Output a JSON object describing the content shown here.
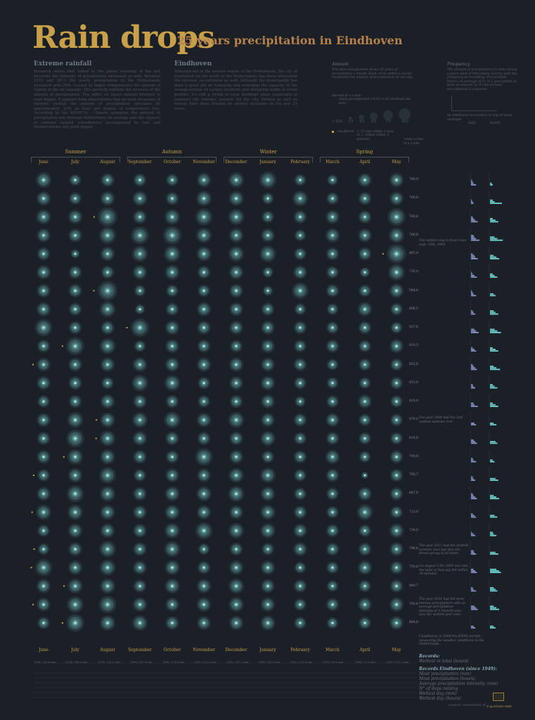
{
  "title": "Rain drops",
  "subtitle": "25 years precipitation in Eindhoven",
  "intro": {
    "heading": "Extreme rainfall",
    "text": "Research shows that linked to the global warming of the last decennia the intensity of precipitation increased as well. Between 1910 and 2013 the yearly precipitation in the Netherlands increased with 26%. Caused by higher temperatures the amount of vapour in the air expands. This partially explains the increase of the amount of precipitation. The effect on heavy rainfall however is even bigger. It appears from observations that on most occasions of extreme rainfall the amount of precipitation increases by approximately 12% an hour per degree of temperature rise. According to the KNMI'14 - climate scenarios the amount of precipitation will increase furthermore on average and the chances of extreme rainfall (cloudbursts) accompanied by hail and thunderstorms will grow bigger."
  },
  "eindhoven": {
    "heading": "Eindhoven",
    "text": "Although not in the wettest region of the Netherlands, the city of Eindhoven (in the south of the Netherlands) has been witnessing the increase on extremes as well. Although the municipality has done a great job on renewing and enlarging the capacity of the sewage-system on various locations and designing wadis in street profiles, it's still a victim of local floodings when (especially in summer) the extreme showers hit the city. Streets as well as houses have been flooded on several occasions in the last 25 years."
  },
  "legend_amount": {
    "heading": "Amount",
    "text": "This data-visualisation shows 25 years of precipitation a month. Each circle within a month represents the amount of precipitation on one day.",
    "scale_label": "amount in a z-axis",
    "daily_label": "(daily precipitation <0.05 is all rendered the size)",
    "steps": [
      "< 0.05",
      "1,0",
      "4,0",
      "9,0",
      "7,0",
      "16,0"
    ],
    "cloudburst_label": "cloudburst",
    "cloudburst_text": "> 25 mm within 1 hour or > 10mm within 5 minutes"
  },
  "legend_frequency": {
    "heading": "Frequency",
    "text": "The amount of precipitation (in mm) during a given spell of time (daily, hourly) with the frequency of exceeding. For example there's an average of 1x in 5 year within at least an amount of 30 mm an hour precipitation is expected.",
    "additional": "an additional occurrence on top of these averages",
    "left_label": "daily",
    "right_label": "hourly"
  },
  "totals_header": "totals a year in a z-axis",
  "seasons": [
    "Summer",
    "Autumn",
    "Winter",
    "Spring"
  ],
  "months": [
    "June",
    "July",
    "August",
    "September",
    "October",
    "November",
    "December",
    "January",
    "February",
    "March",
    "April",
    "May"
  ],
  "colors": {
    "background": "#1b1f26",
    "accent": "#c9a04a",
    "drop": "#7fc8c4",
    "daily_bar": "#8c93c8",
    "hourly_bar": "#6ed6d2"
  },
  "chart_data": {
    "type": "bubble-matrix",
    "rows": 25,
    "columns": [
      "June",
      "July",
      "August",
      "September",
      "October",
      "November",
      "December",
      "January",
      "February",
      "March",
      "April",
      "May"
    ],
    "monthly_mm": [
      [
        72,
        40,
        55,
        50,
        45,
        60,
        70,
        85,
        40,
        35,
        55,
        60
      ],
      [
        60,
        45,
        60,
        65,
        50,
        70,
        65,
        40,
        70,
        45,
        50,
        55
      ],
      [
        65,
        60,
        110,
        55,
        70,
        85,
        75,
        45,
        50,
        55,
        50,
        95
      ],
      [
        55,
        55,
        85,
        95,
        100,
        70,
        60,
        55,
        40,
        60,
        55,
        70
      ],
      [
        50,
        25,
        60,
        75,
        80,
        65,
        70,
        80,
        45,
        50,
        50,
        110
      ],
      [
        60,
        50,
        50,
        60,
        65,
        50,
        60,
        35,
        55,
        45,
        30,
        80
      ],
      [
        55,
        55,
        115,
        40,
        45,
        45,
        55,
        30,
        80,
        50,
        45,
        60
      ],
      [
        60,
        50,
        75,
        30,
        50,
        60,
        55,
        50,
        40,
        40,
        60,
        45
      ],
      [
        90,
        50,
        55,
        100,
        60,
        55,
        55,
        55,
        50,
        45,
        50,
        40
      ],
      [
        50,
        95,
        75,
        40,
        55,
        50,
        45,
        55,
        45,
        50,
        45,
        55
      ],
      [
        55,
        55,
        60,
        60,
        60,
        60,
        60,
        55,
        50,
        40,
        45,
        45
      ],
      [
        55,
        55,
        45,
        80,
        75,
        45,
        55,
        60,
        45,
        40,
        40,
        45
      ],
      [
        45,
        50,
        60,
        55,
        50,
        45,
        50,
        55,
        35,
        45,
        55,
        45
      ],
      [
        55,
        75,
        65,
        70,
        80,
        60,
        75,
        55,
        50,
        55,
        45,
        45
      ],
      [
        50,
        95,
        70,
        60,
        55,
        50,
        55,
        65,
        45,
        50,
        45,
        45
      ],
      [
        55,
        70,
        65,
        55,
        50,
        90,
        55,
        45,
        50,
        60,
        40,
        50
      ],
      [
        45,
        60,
        80,
        45,
        55,
        55,
        65,
        70,
        45,
        50,
        15,
        50
      ],
      [
        55,
        85,
        70,
        55,
        65,
        65,
        75,
        60,
        45,
        45,
        55,
        50
      ],
      [
        70,
        70,
        65,
        55,
        65,
        60,
        55,
        65,
        50,
        45,
        75,
        45
      ],
      [
        45,
        60,
        60,
        55,
        70,
        85,
        70,
        65,
        55,
        50,
        45,
        60
      ],
      [
        40,
        55,
        80,
        55,
        75,
        40,
        50,
        45,
        55,
        50,
        50,
        55
      ],
      [
        85,
        60,
        75,
        55,
        65,
        50,
        60,
        60,
        40,
        45,
        60,
        50
      ],
      [
        60,
        65,
        70,
        50,
        65,
        60,
        70,
        55,
        50,
        40,
        45,
        50
      ],
      [
        55,
        80,
        90,
        60,
        55,
        60,
        65,
        60,
        45,
        50,
        55,
        60
      ],
      [
        45,
        95,
        70,
        70,
        55,
        55,
        60,
        65,
        45,
        40,
        45,
        55
      ]
    ],
    "cloudburst_markers": [
      [
        2,
        2
      ],
      [
        4,
        11
      ],
      [
        6,
        2
      ],
      [
        8,
        3
      ],
      [
        9,
        1
      ],
      [
        10,
        0
      ],
      [
        13,
        2
      ],
      [
        14,
        2
      ],
      [
        15,
        1
      ],
      [
        16,
        0
      ],
      [
        18,
        0
      ],
      [
        20,
        0
      ],
      [
        21,
        0
      ],
      [
        22,
        1
      ],
      [
        23,
        0
      ],
      [
        24,
        1
      ]
    ],
    "year_totals": [
      "760,9",
      "766,8",
      "760,6",
      "766,8",
      "807,9",
      "735,0",
      "584,0",
      "606,5",
      "927,6",
      "810,3",
      "832,8",
      "815,0",
      "824,0",
      "870,0",
      "818,8",
      "790,8",
      "795,7",
      "847,8",
      "713,0",
      "734,0",
      "796,6",
      "750,6",
      "840,7",
      "793,6",
      "804,8"
    ]
  },
  "frequency_daily": [
    [
      6,
      3,
      2,
      1
    ],
    [
      3,
      2,
      1
    ],
    [
      8,
      5,
      3,
      2
    ],
    [
      10,
      6,
      4,
      3
    ],
    [
      8,
      5,
      4,
      2
    ],
    [
      7,
      4,
      2,
      1
    ],
    [
      6,
      3,
      2,
      1
    ],
    [
      5,
      3,
      2
    ],
    [
      9,
      6,
      4
    ],
    [
      6,
      4,
      2
    ],
    [
      7,
      5,
      3,
      2
    ],
    [
      5,
      3,
      2
    ],
    [
      8,
      4,
      3
    ],
    [
      6,
      4
    ],
    [
      7,
      5,
      3
    ],
    [
      6,
      3,
      2
    ],
    [
      5,
      3,
      2
    ],
    [
      7,
      5,
      3,
      2
    ],
    [
      6,
      4,
      2
    ],
    [
      5,
      3,
      1
    ],
    [
      6,
      4,
      3
    ],
    [
      7,
      5,
      3
    ],
    [
      6,
      3,
      2
    ],
    [
      8,
      6,
      4
    ],
    [
      5,
      3
    ]
  ],
  "frequency_hourly": [
    [
      3,
      2
    ],
    [
      13,
      5,
      3
    ],
    [
      9,
      6,
      3
    ],
    [
      14,
      8,
      5
    ],
    [
      10,
      7,
      4
    ],
    [
      8,
      5,
      3
    ],
    [
      6,
      4
    ],
    [
      9,
      6,
      4
    ],
    [
      12,
      8,
      5
    ],
    [
      9,
      6,
      3
    ],
    [
      11,
      7,
      4
    ],
    [
      8,
      5,
      3
    ],
    [
      9,
      6,
      3
    ],
    [
      7,
      4
    ],
    [
      8,
      6
    ],
    [
      5,
      3
    ],
    [
      9,
      6
    ],
    [
      10,
      7,
      4
    ],
    [
      8,
      5
    ],
    [
      7,
      4,
      3
    ],
    [
      9,
      6
    ],
    [
      12,
      10,
      7
    ],
    [
      8,
      6,
      4
    ],
    [
      10,
      7,
      4
    ],
    [
      6,
      4
    ]
  ],
  "notes": [
    "The wettest day in hours was sept. 15th, 1995.",
    "The year 2004 had the 2nd wettest summer ever.",
    "The year 2011 had the wettest summer ever but also the driest spring of all times.",
    "On August 13th 2008 was rain the total of that day fell within 24 minutes.",
    "The year 2014 had the most intense precipitation with an average precipitation intensity of 1.5mm/hr also also the wettest year ever.",
    "Cloudburst: in 2008 the KNMI started measuring the weather conditions in the Netherlands."
  ],
  "records": {
    "heading": "Records:",
    "wettest_label": "Wettest in total (hours)",
    "heading2": "Records Eindhoven (since 1949):",
    "labels": [
      "Most precipitation (mm)",
      "Most precipitation (hours)",
      "Average precipitation intensity (mm)",
      "N° of days raining",
      "Wettest day (mm)",
      "Wettest day (hours)"
    ],
    "row_totals": [
      "1998: 138,4 mm",
      "2014: 148,0 mm",
      "1998: 138,1 mm",
      "1998: 167,9 mm",
      "1998: 174,8 mm",
      "2009: 133,0 mm",
      "1993: 147,3 mm",
      "1995: 130,3 mm",
      "2002: 135,8 mm",
      "2001: 90,0 mm",
      "1994: 73,7 mm",
      "2007: 111,7 mm"
    ]
  },
  "source": "source: www.knmi.nl",
  "credit": "© by STUDIO TERP"
}
